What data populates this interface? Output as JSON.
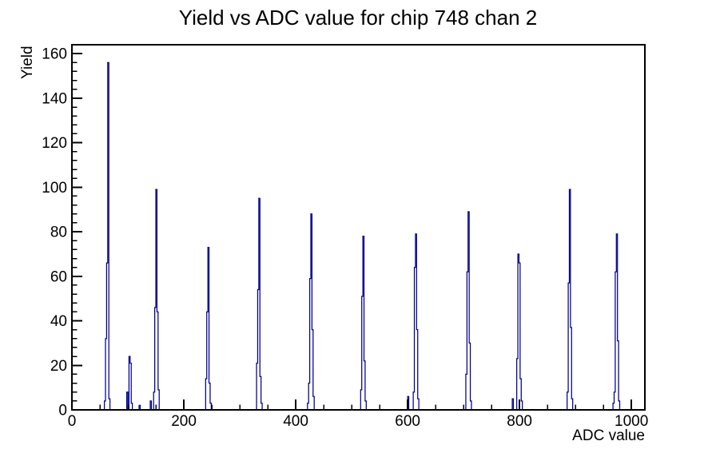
{
  "title": "Yield vs ADC value for chip 748 chan 2",
  "chart_data": {
    "type": "bar",
    "subtype": "histogram-outline",
    "title": "Yield vs ADC value for chip 748 chan 2",
    "xlabel": "ADC value",
    "ylabel": "Yield",
    "xlim": [
      0,
      1024
    ],
    "ylim": [
      0,
      164
    ],
    "x_major_ticks": [
      0,
      200,
      400,
      600,
      800,
      1000
    ],
    "x_minor_step": 50,
    "y_major_ticks": [
      0,
      20,
      40,
      60,
      80,
      100,
      120,
      140,
      160
    ],
    "y_minor_step": 4,
    "grid": false,
    "legend": null,
    "bin_width": 2,
    "line_color": "#00008b",
    "axis_color": "#000000",
    "bars": [
      [
        59,
        4
      ],
      [
        61,
        32
      ],
      [
        63,
        66
      ],
      [
        65,
        156
      ],
      [
        67,
        5
      ],
      [
        99,
        8
      ],
      [
        103,
        24
      ],
      [
        105,
        21
      ],
      [
        107,
        3
      ],
      [
        121,
        2
      ],
      [
        141,
        4
      ],
      [
        147,
        8
      ],
      [
        149,
        46
      ],
      [
        151,
        99
      ],
      [
        153,
        44
      ],
      [
        155,
        9
      ],
      [
        240,
        14
      ],
      [
        242,
        44
      ],
      [
        244,
        73
      ],
      [
        246,
        12
      ],
      [
        248,
        3
      ],
      [
        331,
        21
      ],
      [
        333,
        54
      ],
      [
        335,
        95
      ],
      [
        337,
        15
      ],
      [
        339,
        3
      ],
      [
        422,
        3
      ],
      [
        424,
        12
      ],
      [
        426,
        59
      ],
      [
        428,
        88
      ],
      [
        430,
        36
      ],
      [
        432,
        6
      ],
      [
        517,
        9
      ],
      [
        519,
        51
      ],
      [
        521,
        78
      ],
      [
        523,
        22
      ],
      [
        525,
        4
      ],
      [
        601,
        6
      ],
      [
        611,
        8
      ],
      [
        613,
        64
      ],
      [
        615,
        79
      ],
      [
        617,
        36
      ],
      [
        619,
        5
      ],
      [
        705,
        16
      ],
      [
        707,
        62
      ],
      [
        709,
        89
      ],
      [
        711,
        30
      ],
      [
        713,
        4
      ],
      [
        788,
        5
      ],
      [
        796,
        23
      ],
      [
        798,
        70
      ],
      [
        800,
        66
      ],
      [
        802,
        14
      ],
      [
        804,
        4
      ],
      [
        886,
        8
      ],
      [
        888,
        57
      ],
      [
        890,
        99
      ],
      [
        892,
        37
      ],
      [
        894,
        5
      ],
      [
        968,
        3
      ],
      [
        970,
        8
      ],
      [
        972,
        62
      ],
      [
        974,
        79
      ],
      [
        976,
        31
      ],
      [
        978,
        4
      ]
    ]
  }
}
